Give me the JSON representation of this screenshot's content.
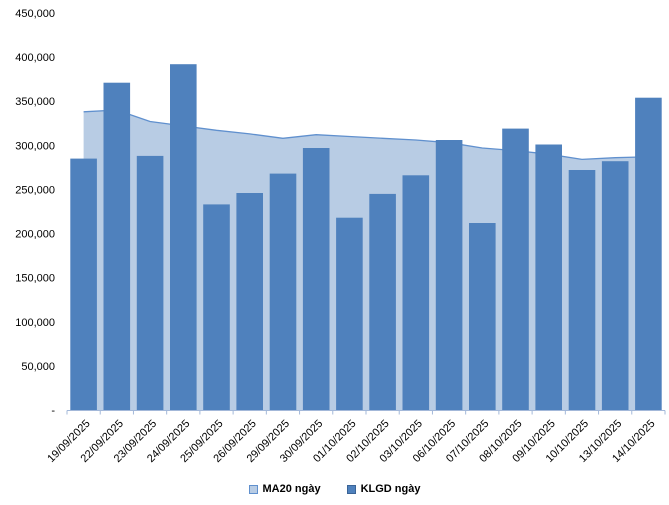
{
  "chart_data": {
    "type": "combo-area-bar",
    "title": "",
    "categories": [
      "19/09/2025",
      "22/09/2025",
      "23/09/2025",
      "24/09/2025",
      "25/09/2025",
      "26/09/2025",
      "29/09/2025",
      "30/09/2025",
      "01/10/2025",
      "02/10/2025",
      "03/10/2025",
      "06/10/2025",
      "07/10/2025",
      "08/10/2025",
      "09/10/2025",
      "10/10/2025",
      "13/10/2025",
      "14/10/2025"
    ],
    "series": [
      {
        "name": "MA20 ngày",
        "type": "area",
        "fill_color": "#B8CCE4",
        "line_color": "#6090CE",
        "values": [
          338000,
          340000,
          327000,
          322000,
          317000,
          313000,
          308000,
          312000,
          310000,
          308000,
          306000,
          303000,
          297000,
          294000,
          290000,
          284000,
          286000,
          287000
        ]
      },
      {
        "name": "KLGD ngày",
        "type": "bar",
        "fill_color": "#4F81BD",
        "values": [
          285000,
          371000,
          288000,
          392000,
          233000,
          246000,
          268000,
          297000,
          218000,
          245000,
          266000,
          306000,
          212000,
          319000,
          301000,
          272000,
          282000,
          354000
        ]
      }
    ],
    "ylim": [
      0,
      450000
    ],
    "ytick_step": 50000,
    "ytick_labels_top_to_bottom": [
      "450,000",
      "400,000",
      "350,000",
      "300,000",
      "250,000",
      "200,000",
      "150,000",
      "100,000",
      "50,000",
      "-"
    ],
    "grid": false,
    "legend_position": "bottom",
    "axis_color": "#A3B8D9",
    "tick_label_color": "#000000",
    "xlabel_rotation_deg": 45
  }
}
